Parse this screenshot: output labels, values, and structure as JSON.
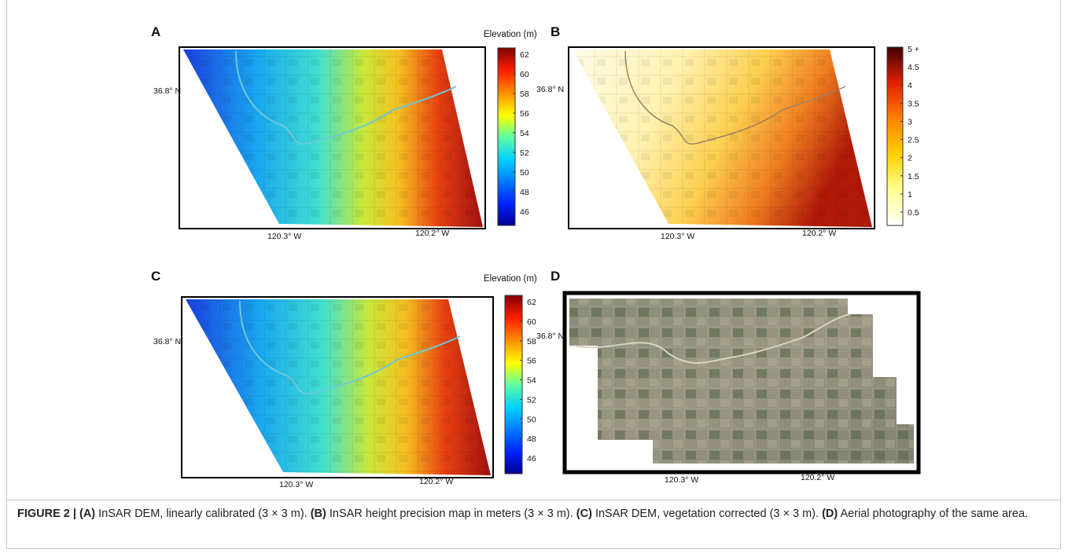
{
  "panels": [
    {
      "label": "A",
      "colorbar_title": "Elevation (m)",
      "colorbar_ticks": [
        62,
        60,
        58,
        56,
        54,
        52,
        50,
        48,
        46
      ],
      "lat_label": "36.8° N",
      "lon_labels": [
        "120.3° W",
        "120.2° W"
      ]
    },
    {
      "label": "B",
      "colorbar_ticks": [
        "5 +",
        4.5,
        4,
        3.5,
        3,
        2.5,
        2,
        1.5,
        1,
        0.5
      ],
      "lat_label": "36.8° N",
      "lon_labels": [
        "120.3° W",
        "120.2° W"
      ]
    },
    {
      "label": "C",
      "colorbar_title": "Elevation (m)",
      "colorbar_ticks": [
        62,
        60,
        58,
        56,
        54,
        52,
        50,
        48,
        46
      ],
      "lat_label": "36.8° N",
      "lon_labels": [
        "120.3° W",
        "120.2° W"
      ]
    },
    {
      "label": "D",
      "lat_label": "36.8° N",
      "lon_labels": [
        "120.3° W",
        "120.2° W"
      ]
    }
  ],
  "caption": [
    {
      "text": "FIGURE 2 | (A)",
      "bold": true
    },
    {
      "text": " InSAR DEM, linearly calibrated (3 × 3 m). "
    },
    {
      "text": "(B)",
      "bold": true
    },
    {
      "text": " InSAR height precision map in meters (3 × 3 m). "
    },
    {
      "text": "(C)",
      "bold": true
    },
    {
      "text": " InSAR DEM, vegetation corrected (3 × 3 m). "
    },
    {
      "text": "(D)",
      "bold": true
    },
    {
      "text": " Aerial photography of the same area."
    }
  ]
}
